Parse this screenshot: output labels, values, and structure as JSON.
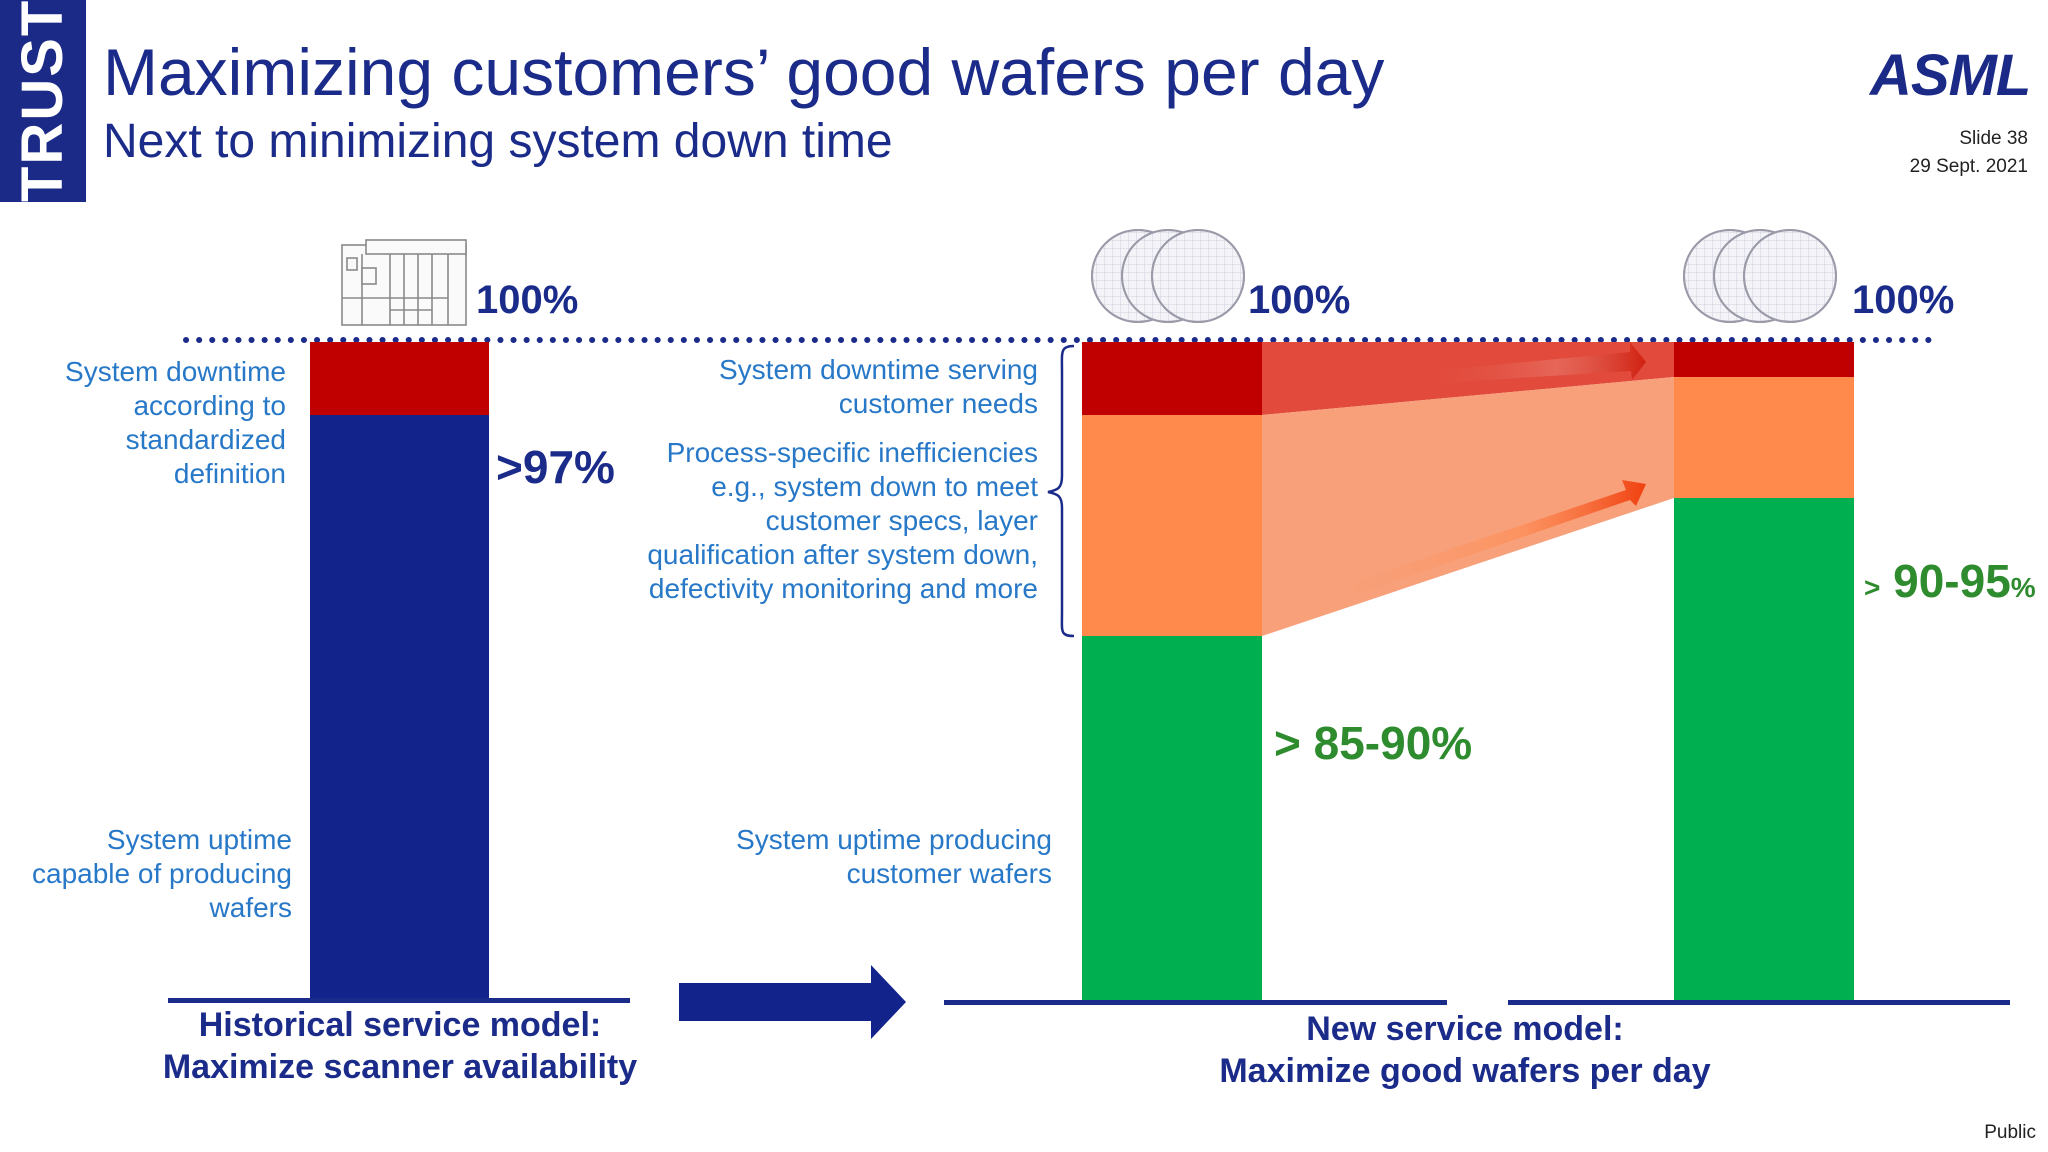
{
  "side_tab": "TRUST",
  "header": {
    "title": "Maximizing customers’ good wafers per day",
    "subtitle": "Next to minimizing system down time",
    "logo": "ASML",
    "slide": "Slide 38",
    "date": "29 Sept. 2021"
  },
  "footer": {
    "classification": "Public"
  },
  "historical": {
    "top_pct": "100%",
    "uptime_pct": ">97%",
    "downtime_label": "System downtime according to standardized definition",
    "uptime_label": "System uptime capable of producing wafers",
    "model_line1": "Historical service model:",
    "model_line2": "Maximize scanner availability"
  },
  "new_model": {
    "bar1_top_pct": "100%",
    "bar2_top_pct": "100%",
    "downtime_label": "System downtime serving customer needs",
    "inefficiency_label": "Process-specific inefficiencies e.g., system down to meet customer specs, layer qualification after system down, defectivity monitoring and more",
    "uptime_label": "System uptime  producing customer wafers",
    "bar1_pct": "> 85-90%",
    "bar2_pct_prefix": ">",
    "bar2_pct_value": "90-95",
    "bar2_pct_suffix": "%",
    "model_line1": "New service model:",
    "model_line2": "Maximize good wafers per day"
  },
  "colors": {
    "navy": "#12238c",
    "downtime_red": "#c00000",
    "inefficiency_orange": "#ff8a4c",
    "uptime_green": "#00b050",
    "label_blue": "#2878c8"
  },
  "icons": [
    "scanner-machine-icon",
    "wafer-stack-icon",
    "wafer-stack-icon"
  ]
}
